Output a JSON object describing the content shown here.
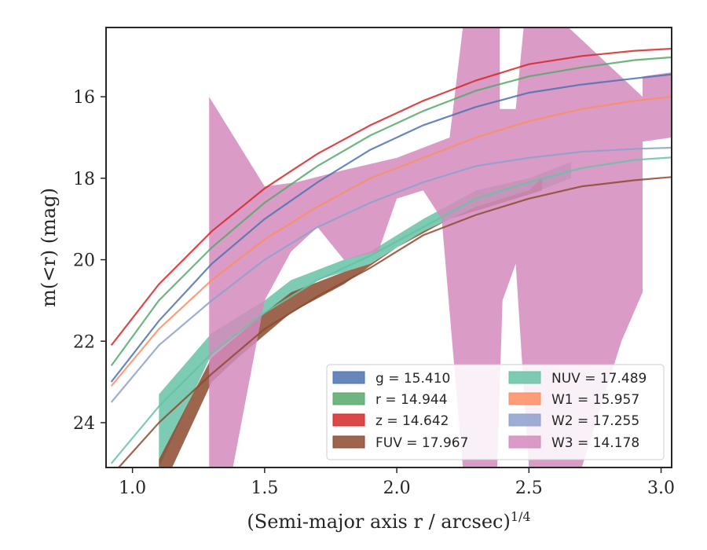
{
  "chart_data": {
    "type": "line",
    "xlabel": "(Semi-major axis r / arcsec)",
    "xlabel_sup": "1/4",
    "ylabel": "m(<r) (mag)",
    "xlim": [
      0.9,
      3.04
    ],
    "ylim": [
      25.1,
      14.3
    ],
    "y_inverted": true,
    "grid": false,
    "legend_position": "lower-right",
    "x_ticks": [
      1.0,
      1.5,
      2.0,
      2.5,
      3.0
    ],
    "x_tick_labels": [
      "1.0",
      "1.5",
      "2.0",
      "2.5",
      "3.0"
    ],
    "y_ticks": [
      16,
      18,
      20,
      22,
      24
    ],
    "y_tick_labels": [
      "16",
      "18",
      "20",
      "22",
      "24"
    ],
    "curves": [
      {
        "key": "W2",
        "color": "#8da0cb",
        "points": [
          [
            0.92,
            23.5
          ],
          [
            1.1,
            22.1
          ],
          [
            1.3,
            21.0
          ],
          [
            1.5,
            20.0
          ],
          [
            1.7,
            19.2
          ],
          [
            1.9,
            18.6
          ],
          [
            2.1,
            18.1
          ],
          [
            2.3,
            17.7
          ],
          [
            2.5,
            17.5
          ],
          [
            2.7,
            17.35
          ],
          [
            2.9,
            17.28
          ],
          [
            3.04,
            17.25
          ]
        ]
      },
      {
        "key": "NUV",
        "color": "#66c2a5",
        "points": [
          [
            0.92,
            25.0
          ],
          [
            1.1,
            23.6
          ],
          [
            1.3,
            22.3
          ],
          [
            1.5,
            21.3
          ],
          [
            1.7,
            20.5
          ],
          [
            1.9,
            19.9
          ],
          [
            2.1,
            19.2
          ],
          [
            2.3,
            18.5
          ],
          [
            2.5,
            18.1
          ],
          [
            2.7,
            17.75
          ],
          [
            2.9,
            17.55
          ],
          [
            3.04,
            17.49
          ]
        ]
      },
      {
        "key": "FUV",
        "color": "#8c4a2f",
        "points": [
          [
            0.92,
            25.3
          ],
          [
            1.1,
            24.0
          ],
          [
            1.3,
            22.8
          ],
          [
            1.5,
            21.7
          ],
          [
            1.7,
            20.9
          ],
          [
            1.9,
            20.2
          ],
          [
            2.1,
            19.4
          ],
          [
            2.3,
            18.9
          ],
          [
            2.5,
            18.5
          ],
          [
            2.7,
            18.2
          ],
          [
            2.9,
            18.05
          ],
          [
            3.04,
            17.97
          ]
        ]
      },
      {
        "key": "W1",
        "color": "#fc8d62",
        "points": [
          [
            0.92,
            23.1
          ],
          [
            1.1,
            21.7
          ],
          [
            1.3,
            20.5
          ],
          [
            1.5,
            19.5
          ],
          [
            1.7,
            18.7
          ],
          [
            1.9,
            18.0
          ],
          [
            2.1,
            17.5
          ],
          [
            2.3,
            17.0
          ],
          [
            2.5,
            16.6
          ],
          [
            2.7,
            16.3
          ],
          [
            2.9,
            16.1
          ],
          [
            3.04,
            16.0
          ]
        ]
      },
      {
        "key": "g",
        "color": "#4c72b0",
        "points": [
          [
            0.92,
            23.0
          ],
          [
            1.1,
            21.5
          ],
          [
            1.3,
            20.1
          ],
          [
            1.5,
            19.0
          ],
          [
            1.7,
            18.1
          ],
          [
            1.9,
            17.3
          ],
          [
            2.1,
            16.7
          ],
          [
            2.3,
            16.25
          ],
          [
            2.5,
            15.9
          ],
          [
            2.7,
            15.7
          ],
          [
            2.9,
            15.55
          ],
          [
            3.04,
            15.45
          ]
        ]
      },
      {
        "key": "r",
        "color": "#55a868",
        "points": [
          [
            0.92,
            22.6
          ],
          [
            1.1,
            21.0
          ],
          [
            1.3,
            19.7
          ],
          [
            1.5,
            18.6
          ],
          [
            1.7,
            17.7
          ],
          [
            1.9,
            16.95
          ],
          [
            2.1,
            16.35
          ],
          [
            2.3,
            15.85
          ],
          [
            2.5,
            15.5
          ],
          [
            2.7,
            15.28
          ],
          [
            2.9,
            15.1
          ],
          [
            3.04,
            15.03
          ]
        ]
      },
      {
        "key": "z",
        "color": "#d62728",
        "points": [
          [
            0.92,
            22.1
          ],
          [
            1.1,
            20.6
          ],
          [
            1.3,
            19.3
          ],
          [
            1.5,
            18.25
          ],
          [
            1.7,
            17.4
          ],
          [
            1.9,
            16.7
          ],
          [
            2.1,
            16.1
          ],
          [
            2.3,
            15.6
          ],
          [
            2.5,
            15.2
          ],
          [
            2.7,
            15.0
          ],
          [
            2.9,
            14.87
          ],
          [
            3.04,
            14.82
          ]
        ]
      }
    ],
    "bands": [
      {
        "key": "NUV",
        "color": "#66c2a5",
        "opacity": 0.85,
        "polygon": [
          [
            1.1,
            23.3
          ],
          [
            1.3,
            21.8
          ],
          [
            1.5,
            21.0
          ],
          [
            1.6,
            20.5
          ],
          [
            1.8,
            20.0
          ],
          [
            1.9,
            19.8
          ],
          [
            2.1,
            19.0
          ],
          [
            2.3,
            18.3
          ],
          [
            2.5,
            18.0
          ],
          [
            2.66,
            17.6
          ],
          [
            2.66,
            18.0
          ],
          [
            2.5,
            18.4
          ],
          [
            2.3,
            18.7
          ],
          [
            2.1,
            19.3
          ],
          [
            1.9,
            20.1
          ],
          [
            1.7,
            20.5
          ],
          [
            1.5,
            21.3
          ],
          [
            1.3,
            22.3
          ],
          [
            1.1,
            25.1
          ]
        ]
      },
      {
        "key": "FUV",
        "color": "#8c4a2f",
        "opacity": 0.85,
        "polygon": [
          [
            1.1,
            24.9
          ],
          [
            1.3,
            22.4
          ],
          [
            1.5,
            21.3
          ],
          [
            1.6,
            20.8
          ],
          [
            1.8,
            20.3
          ],
          [
            1.9,
            20.1
          ],
          [
            2.1,
            19.3
          ],
          [
            2.3,
            18.7
          ],
          [
            2.5,
            18.3
          ],
          [
            2.55,
            18.0
          ],
          [
            2.55,
            18.3
          ],
          [
            2.4,
            18.6
          ],
          [
            2.2,
            19.0
          ],
          [
            2.0,
            19.7
          ],
          [
            1.8,
            20.6
          ],
          [
            1.6,
            21.3
          ],
          [
            1.4,
            22.4
          ],
          [
            1.3,
            23.0
          ],
          [
            1.15,
            25.1
          ],
          [
            1.1,
            25.1
          ]
        ]
      },
      {
        "key": "W3",
        "color": "#d48bbd",
        "opacity": 0.85,
        "polygon": [
          [
            1.29,
            16.0
          ],
          [
            1.5,
            18.2
          ],
          [
            1.62,
            18.1
          ],
          [
            1.8,
            17.8
          ],
          [
            2.0,
            17.5
          ],
          [
            2.2,
            17.0
          ],
          [
            2.25,
            14.3
          ],
          [
            2.39,
            14.3
          ],
          [
            2.39,
            16.3
          ],
          [
            2.45,
            16.3
          ],
          [
            2.48,
            14.3
          ],
          [
            2.65,
            14.3
          ],
          [
            2.93,
            16.0
          ],
          [
            2.93,
            15.5
          ],
          [
            3.04,
            15.4
          ],
          [
            3.04,
            17.0
          ],
          [
            2.93,
            17.1
          ],
          [
            2.93,
            20.8
          ],
          [
            2.85,
            22.0
          ],
          [
            2.7,
            25.1
          ],
          [
            2.5,
            25.1
          ],
          [
            2.45,
            20.1
          ],
          [
            2.4,
            21.0
          ],
          [
            2.38,
            25.1
          ],
          [
            2.25,
            25.1
          ],
          [
            2.17,
            19.0
          ],
          [
            2.1,
            18.3
          ],
          [
            2.0,
            18.5
          ],
          [
            1.93,
            19.8
          ],
          [
            1.8,
            20.0
          ],
          [
            1.7,
            19.2
          ],
          [
            1.6,
            19.8
          ],
          [
            1.5,
            21.0
          ],
          [
            1.38,
            25.1
          ],
          [
            1.29,
            25.1
          ]
        ]
      }
    ],
    "legend": {
      "columns": [
        [
          {
            "label": "g = 15.410",
            "color": "#4c72b0"
          },
          {
            "label": "r = 14.944",
            "color": "#55a868"
          },
          {
            "label": "z = 14.642",
            "color": "#d62728"
          },
          {
            "label": "FUV = 17.967",
            "color": "#8c4a2f"
          }
        ],
        [
          {
            "label": "NUV = 17.489",
            "color": "#66c2a5"
          },
          {
            "label": "W1 = 15.957",
            "color": "#fc8d62"
          },
          {
            "label": "W2 = 17.255",
            "color": "#8da0cb"
          },
          {
            "label": "W3 = 14.178",
            "color": "#d48bbd"
          }
        ]
      ]
    }
  }
}
